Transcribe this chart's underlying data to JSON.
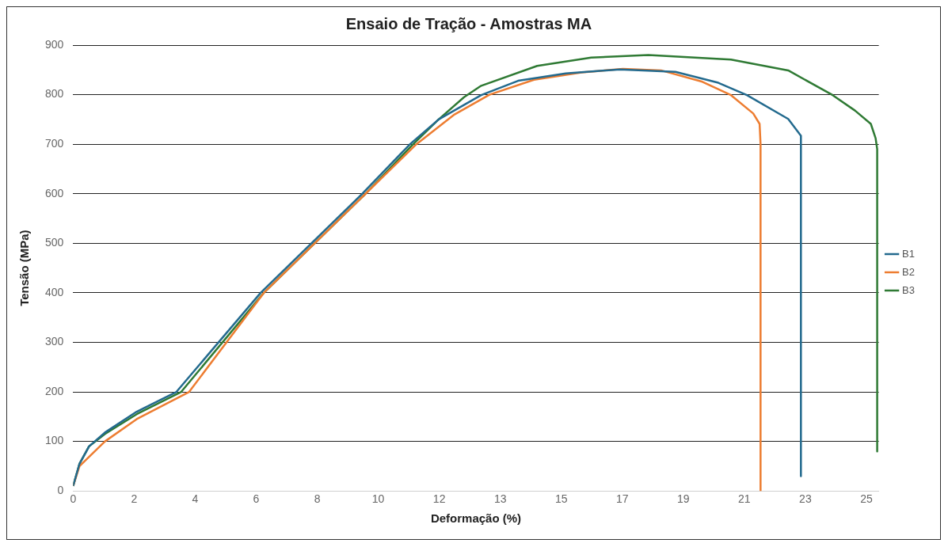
{
  "chart_data": {
    "type": "line",
    "title": "Ensaio de Tração - Amostras MA",
    "xlabel": "Deformação (%)",
    "ylabel": "Tensão (MPa)",
    "xlim": [
      0,
      25.35
    ],
    "ylim": [
      0,
      900
    ],
    "xticks": [
      0,
      {
        "value": 1.92,
        "label": "2"
      },
      {
        "value": 3.84,
        "label": "4"
      },
      {
        "value": 5.76,
        "label": "6"
      },
      {
        "value": 7.68,
        "label": "8"
      },
      {
        "value": 9.6,
        "label": "10"
      },
      {
        "value": 11.52,
        "label": "12"
      },
      {
        "value": 13.44,
        "label": "13"
      },
      {
        "value": 15.36,
        "label": "15"
      },
      {
        "value": 17.28,
        "label": "17"
      },
      {
        "value": 19.2,
        "label": "19"
      },
      {
        "value": 21.12,
        "label": "21"
      },
      {
        "value": 23.04,
        "label": "23"
      },
      {
        "value": 24.96,
        "label": "25"
      }
    ],
    "yticks": [
      0,
      100,
      200,
      300,
      400,
      500,
      600,
      700,
      800,
      900
    ],
    "grid": "y",
    "legend": "right",
    "marker": "none",
    "line_style": "solid",
    "series": [
      {
        "name": "B1",
        "color": "#236a8e",
        "x": [
          0,
          0.2,
          0.5,
          1.0,
          2.0,
          3.25,
          5.9,
          9.1,
          10.6,
          11.5,
          12.84,
          14.0,
          15.5,
          17.2,
          18.95,
          20.3,
          21.2,
          22.5,
          22.9,
          22.9
        ],
        "values": [
          10,
          55,
          90,
          118,
          160,
          200,
          400,
          600,
          700,
          750,
          799,
          828,
          843,
          851,
          846,
          824,
          799,
          751,
          717,
          30
        ]
      },
      {
        "name": "B2",
        "color": "#ed7d31",
        "x": [
          0,
          0.2,
          1.0,
          2.0,
          3.65,
          6.0,
          9.2,
          10.8,
          12.0,
          13.1,
          14.5,
          16.0,
          17.3,
          18.5,
          19.8,
          20.7,
          21.4,
          21.6,
          21.63,
          21.63
        ],
        "values": [
          10,
          50,
          100,
          145,
          200,
          400,
          600,
          700,
          760,
          800,
          830,
          845,
          852,
          849,
          826,
          799,
          762,
          741,
          700,
          0
        ]
      },
      {
        "name": "B3",
        "color": "#2f7a34",
        "x": [
          0,
          0.2,
          0.5,
          1.0,
          2.0,
          3.4,
          6.0,
          9.2,
          10.7,
          11.5,
          12.3,
          12.84,
          14.6,
          16.3,
          18.1,
          20.7,
          22.5,
          23.9,
          24.6,
          25.1,
          25.25,
          25.3,
          25.3
        ],
        "values": [
          10,
          55,
          90,
          115,
          155,
          200,
          400,
          600,
          700,
          750,
          795,
          818,
          858,
          875,
          880,
          871,
          849,
          799,
          768,
          741,
          712,
          690,
          80
        ]
      }
    ]
  }
}
